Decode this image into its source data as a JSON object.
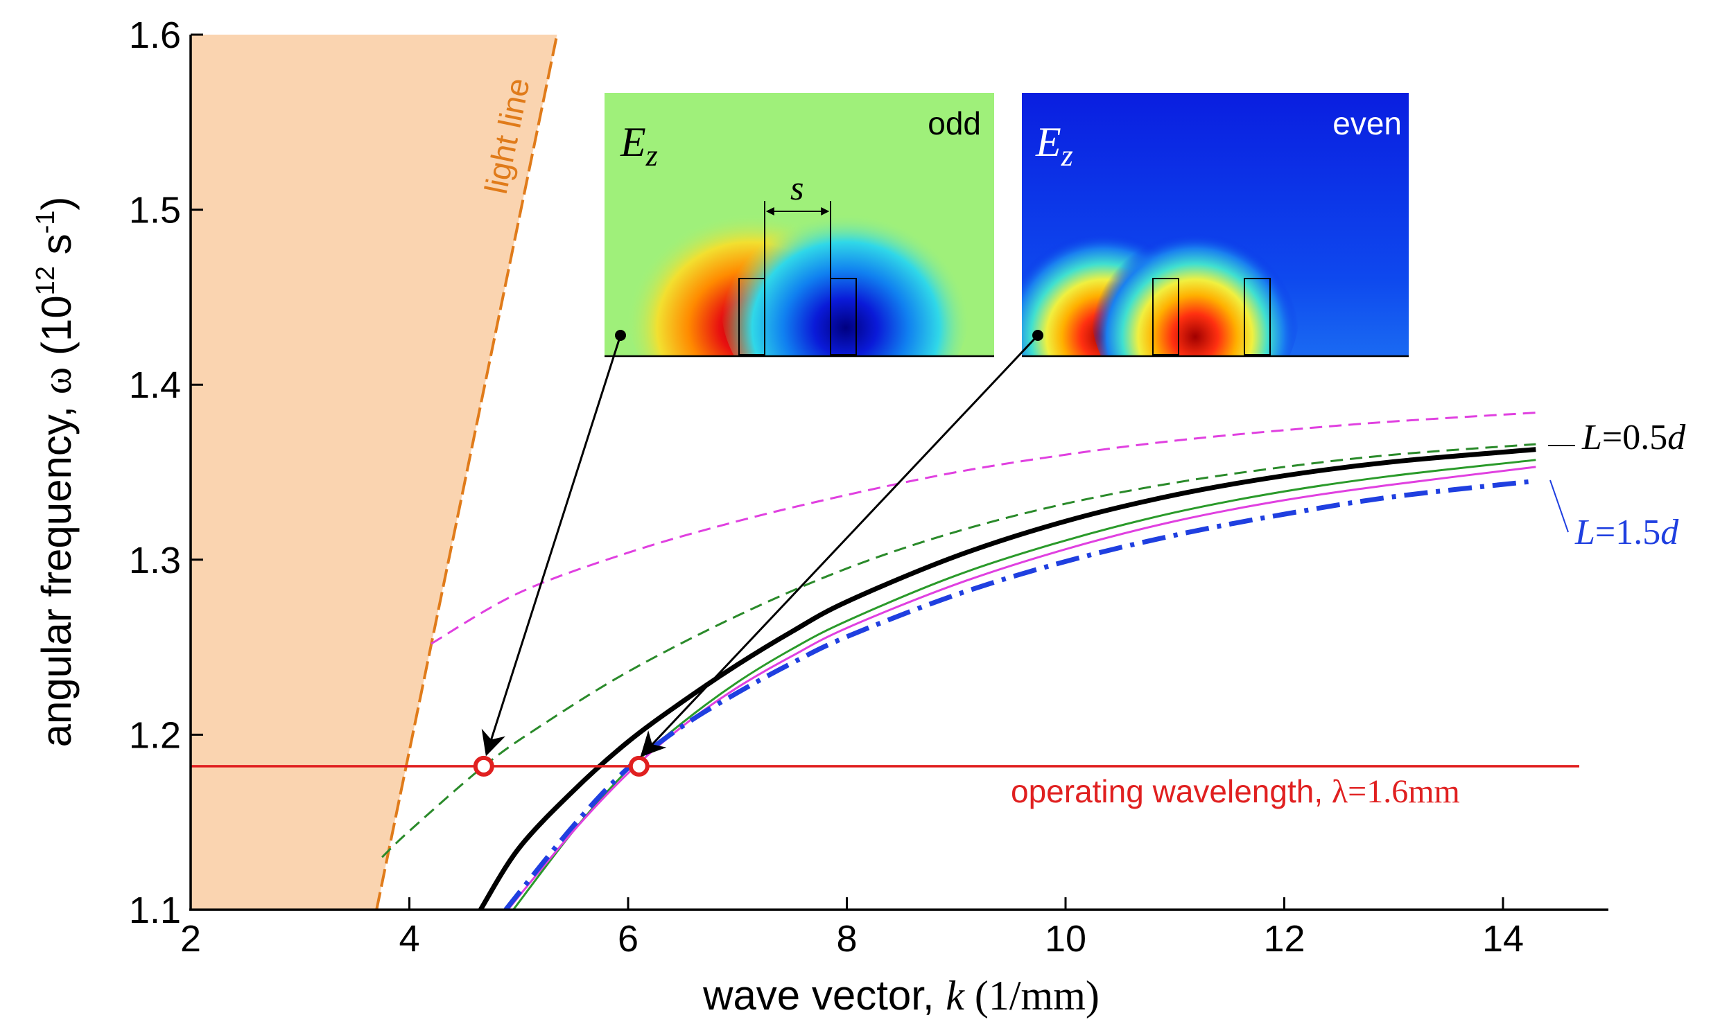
{
  "chart_data": {
    "type": "line",
    "xlabel_prefix": "wave vector, ",
    "xlabel_var": "k",
    "xlabel_unit": " (1/mm)",
    "ylabel_prefix": "angular frequency, ",
    "ylabel_var": "ω",
    "ylabel_unit_open": " (10",
    "ylabel_unit_exp1": "12",
    "ylabel_unit_mid": " s",
    "ylabel_unit_exp2": "-1",
    "ylabel_unit_close": ")",
    "xlim": [
      2,
      15
    ],
    "ylim": [
      1.1,
      1.6
    ],
    "xticks": [
      2,
      4,
      6,
      8,
      10,
      12,
      14
    ],
    "xtick_labels": [
      "2",
      "4",
      "6",
      "8",
      "10",
      "12",
      "14"
    ],
    "yticks": [
      1.1,
      1.2,
      1.3,
      1.4,
      1.5,
      1.6
    ],
    "ytick_labels": [
      "1.1",
      "1.2",
      "1.3",
      "1.4",
      "1.5",
      "1.6"
    ],
    "grid": false,
    "light_line": {
      "label": "light line",
      "color": "#e07b1a",
      "fill": "#fad4b0",
      "points": [
        [
          3.7,
          1.1
        ],
        [
          5.35,
          1.6
        ]
      ]
    },
    "operating_line": {
      "y": 1.182,
      "color": "#e02020",
      "label_text": "operating wavelength, ",
      "label_lambda": "λ=1.6mm"
    },
    "markers": [
      {
        "x": 4.68,
        "y": 1.182,
        "color": "#e02020"
      },
      {
        "x": 6.1,
        "y": 1.182,
        "color": "#e02020"
      }
    ],
    "series": [
      {
        "style": "dashed",
        "color": "#e040e0",
        "x": [
          4.2,
          5.0,
          6.0,
          7.0,
          8.0,
          9.0,
          10.0,
          11.0,
          12.0,
          13.0,
          14.3
        ],
        "y": [
          1.252,
          1.281,
          1.304,
          1.322,
          1.337,
          1.35,
          1.36,
          1.368,
          1.374,
          1.379,
          1.384
        ]
      },
      {
        "style": "dashed",
        "color": "#2a8a2a",
        "x": [
          3.75,
          4.0,
          4.68,
          5.2,
          6.0,
          7.0,
          8.0,
          9.0,
          10.0,
          11.0,
          12.0,
          13.0,
          14.3
        ],
        "y": [
          1.13,
          1.145,
          1.182,
          1.205,
          1.236,
          1.268,
          1.295,
          1.316,
          1.332,
          1.344,
          1.353,
          1.36,
          1.366
        ]
      },
      {
        "name": "L=0.5d",
        "style": "solid-thick",
        "color": "#000000",
        "x": [
          4.65,
          5.0,
          5.5,
          6.0,
          6.5,
          7.0,
          7.5,
          8.0,
          9.0,
          10.0,
          11.0,
          12.0,
          13.0,
          14.3
        ],
        "y": [
          1.1,
          1.135,
          1.168,
          1.196,
          1.219,
          1.24,
          1.259,
          1.276,
          1.302,
          1.322,
          1.337,
          1.348,
          1.356,
          1.363
        ]
      },
      {
        "style": "solid",
        "color": "#2a9a2a",
        "x": [
          4.95,
          5.5,
          6.0,
          6.5,
          7.0,
          7.5,
          8.0,
          9.0,
          10.0,
          11.0,
          12.0,
          13.0,
          14.3
        ],
        "y": [
          1.1,
          1.145,
          1.18,
          1.207,
          1.23,
          1.249,
          1.265,
          1.291,
          1.311,
          1.327,
          1.339,
          1.348,
          1.357
        ]
      },
      {
        "style": "solid",
        "color": "#e040e0",
        "x": [
          4.9,
          5.5,
          6.0,
          6.5,
          7.0,
          7.5,
          8.0,
          9.0,
          10.0,
          11.0,
          12.0,
          13.0,
          14.3
        ],
        "y": [
          1.1,
          1.145,
          1.178,
          1.205,
          1.227,
          1.245,
          1.261,
          1.286,
          1.306,
          1.322,
          1.334,
          1.343,
          1.353
        ]
      },
      {
        "name": "L=1.5d",
        "style": "dashdot-thick",
        "color": "#1f3fe0",
        "x": [
          4.88,
          5.5,
          6.0,
          6.5,
          7.0,
          7.5,
          8.0,
          9.0,
          10.0,
          11.0,
          12.0,
          13.0,
          14.3
        ],
        "y": [
          1.1,
          1.148,
          1.181,
          1.205,
          1.224,
          1.241,
          1.256,
          1.28,
          1.299,
          1.314,
          1.326,
          1.336,
          1.345
        ]
      }
    ],
    "annotations": [
      {
        "var": "L",
        "text": "=0.5",
        "var2": "d",
        "color": "#000000"
      },
      {
        "var": "L",
        "text": "=1.5",
        "var2": "d",
        "color": "#1f3fe0"
      }
    ],
    "insets": [
      {
        "field_var": "E",
        "field_sub": "z",
        "mode": "odd",
        "gap_label": "s"
      },
      {
        "field_var": "E",
        "field_sub": "z",
        "mode": "even"
      }
    ]
  }
}
